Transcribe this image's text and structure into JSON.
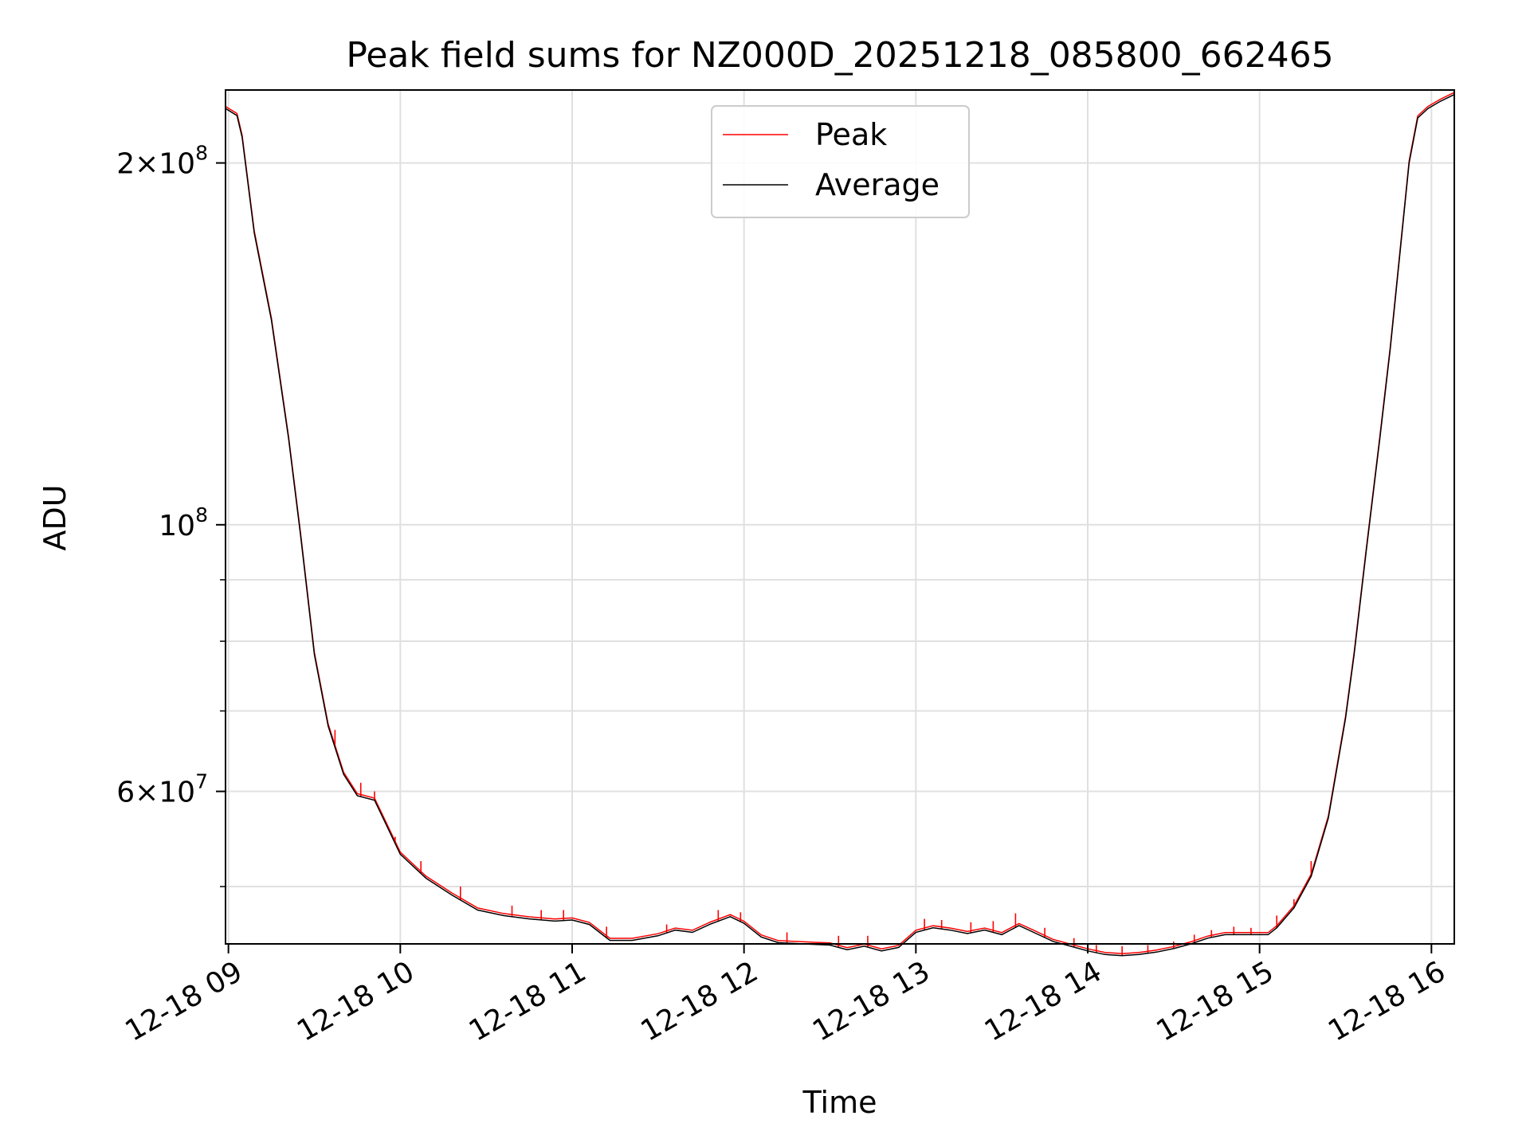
{
  "chart_data": {
    "type": "line",
    "title": "Peak field sums for NZ000D_20251218_085800_662465",
    "xlabel": "Time",
    "ylabel": "ADU",
    "yscale": "log",
    "grid": true,
    "legend_position": "upper center",
    "xlim_hours": [
      8.983,
      16.133
    ],
    "ylim": [
      44800000,
      230000000
    ],
    "x_ticks": [
      {
        "hour": 9,
        "label": "12-18 09"
      },
      {
        "hour": 10,
        "label": "12-18 10"
      },
      {
        "hour": 11,
        "label": "12-18 11"
      },
      {
        "hour": 12,
        "label": "12-18 12"
      },
      {
        "hour": 13,
        "label": "12-18 13"
      },
      {
        "hour": 14,
        "label": "12-18 14"
      },
      {
        "hour": 15,
        "label": "12-18 15"
      },
      {
        "hour": 16,
        "label": "12-18 16"
      }
    ],
    "y_major_ticks": [
      {
        "value": 60000000,
        "mant": "6",
        "exp": "7"
      },
      {
        "value": 100000000,
        "mant": "",
        "exp": "8"
      },
      {
        "value": 200000000,
        "mant": "2",
        "exp": "8"
      }
    ],
    "y_minor_ticks": [
      50000000,
      70000000,
      80000000,
      90000000
    ],
    "series": [
      {
        "name": "Average",
        "color": "#000000",
        "points": [
          [
            8.983,
            222000000
          ],
          [
            9.05,
            219000000
          ],
          [
            9.08,
            210000000
          ],
          [
            9.15,
            175000000
          ],
          [
            9.25,
            148000000
          ],
          [
            9.35,
            118000000
          ],
          [
            9.42,
            98000000
          ],
          [
            9.5,
            78000000
          ],
          [
            9.58,
            68000000
          ],
          [
            9.67,
            62000000
          ],
          [
            9.75,
            59500000
          ],
          [
            9.85,
            59000000
          ],
          [
            9.9,
            57000000
          ],
          [
            10.0,
            53200000
          ],
          [
            10.15,
            50800000
          ],
          [
            10.3,
            49200000
          ],
          [
            10.45,
            47800000
          ],
          [
            10.6,
            47300000
          ],
          [
            10.75,
            47000000
          ],
          [
            10.9,
            46800000
          ],
          [
            11.0,
            46900000
          ],
          [
            11.1,
            46500000
          ],
          [
            11.22,
            45100000
          ],
          [
            11.35,
            45100000
          ],
          [
            11.5,
            45500000
          ],
          [
            11.6,
            46000000
          ],
          [
            11.7,
            45800000
          ],
          [
            11.8,
            46500000
          ],
          [
            11.92,
            47200000
          ],
          [
            12.0,
            46600000
          ],
          [
            12.1,
            45400000
          ],
          [
            12.2,
            44900000
          ],
          [
            12.35,
            44800000
          ],
          [
            12.5,
            44700000
          ],
          [
            12.6,
            44300000
          ],
          [
            12.7,
            44600000
          ],
          [
            12.8,
            44200000
          ],
          [
            12.9,
            44500000
          ],
          [
            13.0,
            45800000
          ],
          [
            13.1,
            46200000
          ],
          [
            13.2,
            46000000
          ],
          [
            13.3,
            45700000
          ],
          [
            13.4,
            46000000
          ],
          [
            13.5,
            45600000
          ],
          [
            13.6,
            46400000
          ],
          [
            13.7,
            45700000
          ],
          [
            13.8,
            45000000
          ],
          [
            13.9,
            44600000
          ],
          [
            14.0,
            44200000
          ],
          [
            14.1,
            43900000
          ],
          [
            14.2,
            43800000
          ],
          [
            14.3,
            43900000
          ],
          [
            14.4,
            44100000
          ],
          [
            14.5,
            44400000
          ],
          [
            14.6,
            44800000
          ],
          [
            14.7,
            45300000
          ],
          [
            14.8,
            45600000
          ],
          [
            14.9,
            45600000
          ],
          [
            15.0,
            45600000
          ],
          [
            15.05,
            45600000
          ],
          [
            15.1,
            46200000
          ],
          [
            15.2,
            48000000
          ],
          [
            15.3,
            51000000
          ],
          [
            15.4,
            57000000
          ],
          [
            15.5,
            69000000
          ],
          [
            15.55,
            78000000
          ],
          [
            15.62,
            95000000
          ],
          [
            15.7,
            118000000
          ],
          [
            15.76,
            140000000
          ],
          [
            15.82,
            170000000
          ],
          [
            15.87,
            200000000
          ],
          [
            15.92,
            218000000
          ],
          [
            15.98,
            222000000
          ],
          [
            16.05,
            225000000
          ],
          [
            16.133,
            228000000
          ]
        ]
      },
      {
        "name": "Peak",
        "color": "#ff0000",
        "spikes": [
          [
            9.62,
            67500000
          ],
          [
            9.77,
            61000000
          ],
          [
            9.85,
            60000000
          ],
          [
            9.97,
            55000000
          ],
          [
            10.12,
            52500000
          ],
          [
            10.35,
            50000000
          ],
          [
            10.65,
            48200000
          ],
          [
            10.82,
            47800000
          ],
          [
            10.95,
            47800000
          ],
          [
            11.2,
            46300000
          ],
          [
            11.55,
            46500000
          ],
          [
            11.85,
            47800000
          ],
          [
            11.98,
            47600000
          ],
          [
            12.25,
            45800000
          ],
          [
            12.55,
            45500000
          ],
          [
            12.72,
            45500000
          ],
          [
            13.05,
            47000000
          ],
          [
            13.15,
            46900000
          ],
          [
            13.32,
            46700000
          ],
          [
            13.45,
            46800000
          ],
          [
            13.58,
            47500000
          ],
          [
            13.75,
            46200000
          ],
          [
            13.92,
            45300000
          ],
          [
            14.05,
            44700000
          ],
          [
            14.2,
            44600000
          ],
          [
            14.35,
            44700000
          ],
          [
            14.5,
            45000000
          ],
          [
            14.62,
            45600000
          ],
          [
            14.72,
            46000000
          ],
          [
            14.85,
            46300000
          ],
          [
            14.95,
            46200000
          ],
          [
            15.1,
            47300000
          ],
          [
            15.2,
            48800000
          ],
          [
            15.3,
            52500000
          ]
        ]
      }
    ]
  }
}
